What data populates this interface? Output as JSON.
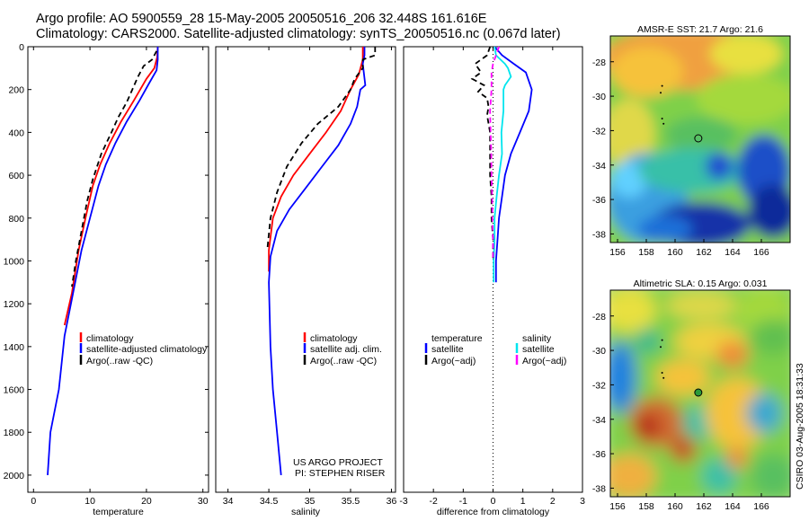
{
  "header": {
    "line1": "Argo profile: AO 5900559_28 15-May-2005 20050516_206 32.448S 161.616E",
    "line2": "Climatology: CARS2000. Satellite-adjusted climatology: synTS_20050516.nc (0.067d later)"
  },
  "side_text": "CSIRO 03-Aug-2005 18:31:33",
  "project_note": {
    "line1": "US ARGO PROJECT",
    "line2": "PI: STEPHEN RISER"
  },
  "colors": {
    "climatology": "#ff0000",
    "satellite": "#0000ff",
    "argo": "#000000",
    "salinity_sat": "#00e5ee",
    "salinity_argo": "#ff00ff"
  },
  "chart_data": [
    {
      "id": "temperature",
      "type": "line",
      "xlabel": "temperature",
      "xlim": [
        -1,
        31
      ],
      "ylim": [
        2080,
        0
      ],
      "xticks": [
        0,
        10,
        20,
        30
      ],
      "yticks": [
        0,
        200,
        400,
        600,
        800,
        1000,
        1200,
        1400,
        1600,
        1800,
        2000
      ],
      "legend": [
        "climatology",
        "satellite-adjusted climatology",
        "Argo(..raw -QC)"
      ],
      "series": [
        {
          "name": "climatology",
          "color": "#ff0000",
          "dash": "",
          "points": [
            [
              22,
              0
            ],
            [
              21.9,
              50
            ],
            [
              21.4,
              100
            ],
            [
              20,
              150
            ],
            [
              17.8,
              250
            ],
            [
              15.5,
              350
            ],
            [
              13.5,
              450
            ],
            [
              11.8,
              550
            ],
            [
              10.5,
              650
            ],
            [
              9.2,
              800
            ],
            [
              8,
              950
            ],
            [
              6.8,
              1150
            ],
            [
              5.5,
              1300
            ]
          ]
        },
        {
          "name": "satellite-adjusted climatology",
          "color": "#0000ff",
          "dash": "",
          "points": [
            [
              22,
              0
            ],
            [
              22,
              60
            ],
            [
              21.8,
              110
            ],
            [
              20.5,
              170
            ],
            [
              18.8,
              250
            ],
            [
              16.5,
              350
            ],
            [
              14.5,
              450
            ],
            [
              12.8,
              550
            ],
            [
              11.5,
              650
            ],
            [
              10,
              800
            ],
            [
              8.5,
              950
            ],
            [
              7,
              1150
            ],
            [
              5.5,
              1350
            ],
            [
              4.5,
              1600
            ],
            [
              3,
              1800
            ],
            [
              2.5,
              2000
            ]
          ]
        },
        {
          "name": "Argo(..raw -QC)",
          "color": "#000000",
          "dash": "6,4",
          "points": [
            [
              21.8,
              20
            ],
            [
              21,
              60
            ],
            [
              19.5,
              90
            ],
            [
              18.5,
              140
            ],
            [
              17.5,
              200
            ],
            [
              16.5,
              260
            ],
            [
              15,
              330
            ],
            [
              13.8,
              400
            ],
            [
              12,
              500
            ],
            [
              10.5,
              620
            ],
            [
              9.5,
              720
            ],
            [
              8.5,
              860
            ],
            [
              7.5,
              1000
            ],
            [
              6.8,
              1120
            ]
          ]
        }
      ]
    },
    {
      "id": "salinity",
      "type": "line",
      "xlabel": "salinity",
      "xlim": [
        33.85,
        36.05
      ],
      "ylim": [
        2080,
        0
      ],
      "xticks": [
        34,
        34.5,
        35,
        35.5,
        36
      ],
      "yticks": [],
      "legend": [
        "climatology",
        "satellite adj. clim.",
        "Argo(..raw -QC)"
      ],
      "series": [
        {
          "name": "climatology",
          "color": "#ff0000",
          "dash": "",
          "points": [
            [
              35.65,
              0
            ],
            [
              35.65,
              60
            ],
            [
              35.6,
              130
            ],
            [
              35.5,
              200
            ],
            [
              35.38,
              300
            ],
            [
              35.2,
              400
            ],
            [
              35,
              500
            ],
            [
              34.8,
              600
            ],
            [
              34.65,
              700
            ],
            [
              34.55,
              800
            ],
            [
              34.5,
              950
            ],
            [
              34.5,
              1050
            ]
          ]
        },
        {
          "name": "satellite adj. clim.",
          "color": "#0000ff",
          "dash": "",
          "points": [
            [
              35.67,
              0
            ],
            [
              35.67,
              40
            ],
            [
              35.65,
              80
            ],
            [
              35.68,
              180
            ],
            [
              35.62,
              200
            ],
            [
              35.58,
              280
            ],
            [
              35.5,
              360
            ],
            [
              35.35,
              460
            ],
            [
              35.15,
              560
            ],
            [
              34.95,
              660
            ],
            [
              34.75,
              760
            ],
            [
              34.6,
              860
            ],
            [
              34.52,
              980
            ],
            [
              34.5,
              1100
            ],
            [
              34.52,
              1400
            ],
            [
              34.55,
              1600
            ],
            [
              34.6,
              1800
            ],
            [
              34.65,
              2000
            ]
          ]
        },
        {
          "name": "Argo(..raw -QC)",
          "color": "#000000",
          "dash": "6,4",
          "points": [
            [
              35.8,
              0
            ],
            [
              35.8,
              40
            ],
            [
              35.65,
              60
            ],
            [
              35.65,
              100
            ],
            [
              35.55,
              150
            ],
            [
              35.5,
              200
            ],
            [
              35.35,
              280
            ],
            [
              35.1,
              360
            ],
            [
              34.9,
              450
            ],
            [
              34.72,
              560
            ],
            [
              34.6,
              680
            ],
            [
              34.52,
              800
            ],
            [
              34.48,
              950
            ]
          ]
        }
      ]
    },
    {
      "id": "difference",
      "type": "line",
      "xlabel": "difference from climatology",
      "xlim": [
        -3,
        3
      ],
      "ylim": [
        2080,
        0
      ],
      "xticks": [
        -3,
        -2,
        -1,
        0,
        1,
        2,
        3
      ],
      "yticks": [],
      "legend": [
        "temperature",
        "satellite",
        "Argo(~adj)",
        "salinity",
        "satellite",
        "Argo(~adj)"
      ],
      "series": [
        {
          "name": "temperature satellite",
          "color": "#0000ff",
          "dash": "",
          "points": [
            [
              0.05,
              0
            ],
            [
              0.3,
              40
            ],
            [
              0.7,
              80
            ],
            [
              1.1,
              120
            ],
            [
              1.3,
              200
            ],
            [
              1.2,
              300
            ],
            [
              0.9,
              400
            ],
            [
              0.6,
              500
            ],
            [
              0.4,
              600
            ],
            [
              0.3,
              700
            ],
            [
              0.2,
              800
            ],
            [
              0.15,
              900
            ],
            [
              0.1,
              1000
            ],
            [
              0.1,
              1100
            ]
          ]
        },
        {
          "name": "salinity satellite",
          "color": "#00e5ee",
          "dash": "",
          "points": [
            [
              0.05,
              0
            ],
            [
              0.1,
              40
            ],
            [
              0.4,
              80
            ],
            [
              0.5,
              100
            ],
            [
              0.6,
              140
            ],
            [
              0.4,
              180
            ],
            [
              0.35,
              200
            ],
            [
              0.35,
              300
            ],
            [
              0.28,
              400
            ],
            [
              0.3,
              500
            ],
            [
              0.2,
              600
            ],
            [
              0.12,
              700
            ],
            [
              0.05,
              800
            ],
            [
              0.05,
              900
            ],
            [
              0.02,
              1000
            ],
            [
              0.02,
              1100
            ]
          ]
        },
        {
          "name": "temperature Argo(~adj)",
          "color": "#000000",
          "dash": "6,4",
          "points": [
            [
              -0.1,
              0
            ],
            [
              -0.2,
              40
            ],
            [
              -0.6,
              80
            ],
            [
              -0.4,
              120
            ],
            [
              -0.7,
              150
            ],
            [
              -0.3,
              180
            ],
            [
              -0.5,
              210
            ],
            [
              -0.2,
              240
            ],
            [
              -0.15,
              280
            ],
            [
              -0.2,
              320
            ],
            [
              -0.1,
              400
            ],
            [
              -0.1,
              500
            ],
            [
              -0.1,
              600
            ],
            [
              -0.05,
              700
            ],
            [
              -0.05,
              800
            ],
            [
              0,
              900
            ],
            [
              0,
              1000
            ]
          ]
        },
        {
          "name": "salinity Argo(~adj)",
          "color": "#ff00ff",
          "dash": "6,4",
          "points": [
            [
              0.2,
              0
            ],
            [
              0.1,
              40
            ],
            [
              0,
              80
            ],
            [
              -0.05,
              120
            ],
            [
              -0.05,
              200
            ],
            [
              -0.1,
              300
            ],
            [
              -0.08,
              400
            ],
            [
              -0.06,
              500
            ],
            [
              -0.05,
              600
            ],
            [
              -0.03,
              700
            ],
            [
              -0.02,
              800
            ],
            [
              0,
              900
            ],
            [
              0,
              1000
            ]
          ]
        }
      ]
    },
    {
      "id": "sst-map",
      "type": "heatmap",
      "title": "AMSR-E SST: 21.7 Argo: 21.6",
      "xlim": [
        155.5,
        168
      ],
      "ylim": [
        -38.5,
        -26.5
      ],
      "xticks": [
        156,
        158,
        160,
        162,
        164,
        166
      ],
      "yticks": [
        -28,
        -30,
        -32,
        -34,
        -36,
        -38
      ],
      "argo_position": [
        161.616,
        -32.448
      ],
      "track": [
        [
          159.1,
          -29.4
        ],
        [
          159.0,
          -29.8
        ],
        [
          159.1,
          -31.3
        ],
        [
          159.2,
          -31.6
        ]
      ]
    },
    {
      "id": "sla-map",
      "type": "heatmap",
      "title": "Altimetric SLA: 0.15 Argo: 0.031",
      "xlim": [
        155.5,
        168
      ],
      "ylim": [
        -38.5,
        -26.5
      ],
      "xticks": [
        156,
        158,
        160,
        162,
        164,
        166
      ],
      "yticks": [
        -28,
        -30,
        -32,
        -34,
        -36,
        -38
      ],
      "argo_position": [
        161.616,
        -32.448
      ],
      "track": [
        [
          159.1,
          -29.4
        ],
        [
          159.0,
          -29.8
        ],
        [
          159.1,
          -31.3
        ],
        [
          159.2,
          -31.6
        ]
      ]
    }
  ]
}
